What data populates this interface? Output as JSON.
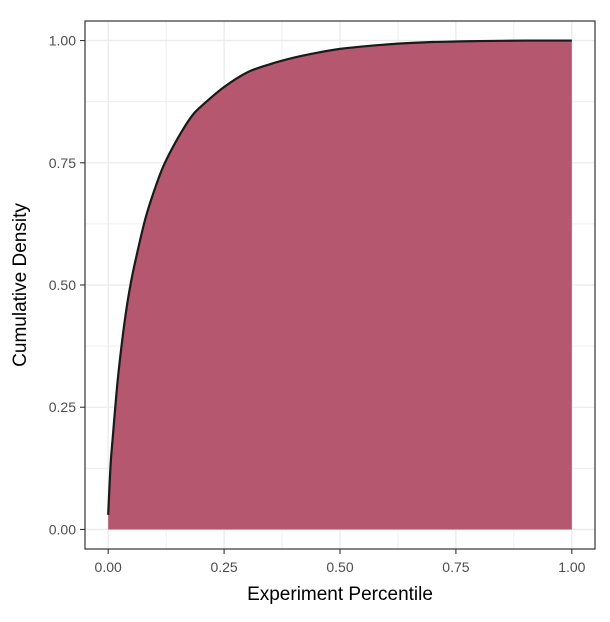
{
  "chart_data": {
    "type": "area",
    "title": "",
    "xlabel": "Experiment Percentile",
    "ylabel": "Cumulative Density",
    "xlim": [
      -0.05,
      1.05
    ],
    "ylim": [
      -0.04,
      1.04
    ],
    "x_ticks": [
      0.0,
      0.25,
      0.5,
      0.75,
      1.0
    ],
    "x_tick_labels": [
      "0.00",
      "0.25",
      "0.50",
      "0.75",
      "1.00"
    ],
    "y_ticks": [
      0.0,
      0.25,
      0.5,
      0.75,
      1.0
    ],
    "y_tick_labels": [
      "0.00",
      "0.25",
      "0.50",
      "0.75",
      "1.00"
    ],
    "grid": true,
    "legend": "none",
    "fill_color": "#b5586f",
    "line_color": "#1a1a1a",
    "series": [
      {
        "x": [
          0.0,
          0.005,
          0.01,
          0.02,
          0.03,
          0.04,
          0.05,
          0.06,
          0.08,
          0.1,
          0.12,
          0.15,
          0.18,
          0.2,
          0.25,
          0.3,
          0.35,
          0.4,
          0.45,
          0.5,
          0.55,
          0.6,
          0.65,
          0.7,
          0.75,
          0.8,
          0.85,
          0.9,
          0.95,
          1.0
        ],
        "y": [
          0.03,
          0.13,
          0.19,
          0.3,
          0.385,
          0.455,
          0.51,
          0.555,
          0.635,
          0.695,
          0.745,
          0.8,
          0.845,
          0.865,
          0.905,
          0.935,
          0.952,
          0.965,
          0.975,
          0.983,
          0.988,
          0.992,
          0.995,
          0.997,
          0.998,
          0.999,
          0.9995,
          1.0,
          1.0,
          1.0
        ]
      }
    ]
  }
}
